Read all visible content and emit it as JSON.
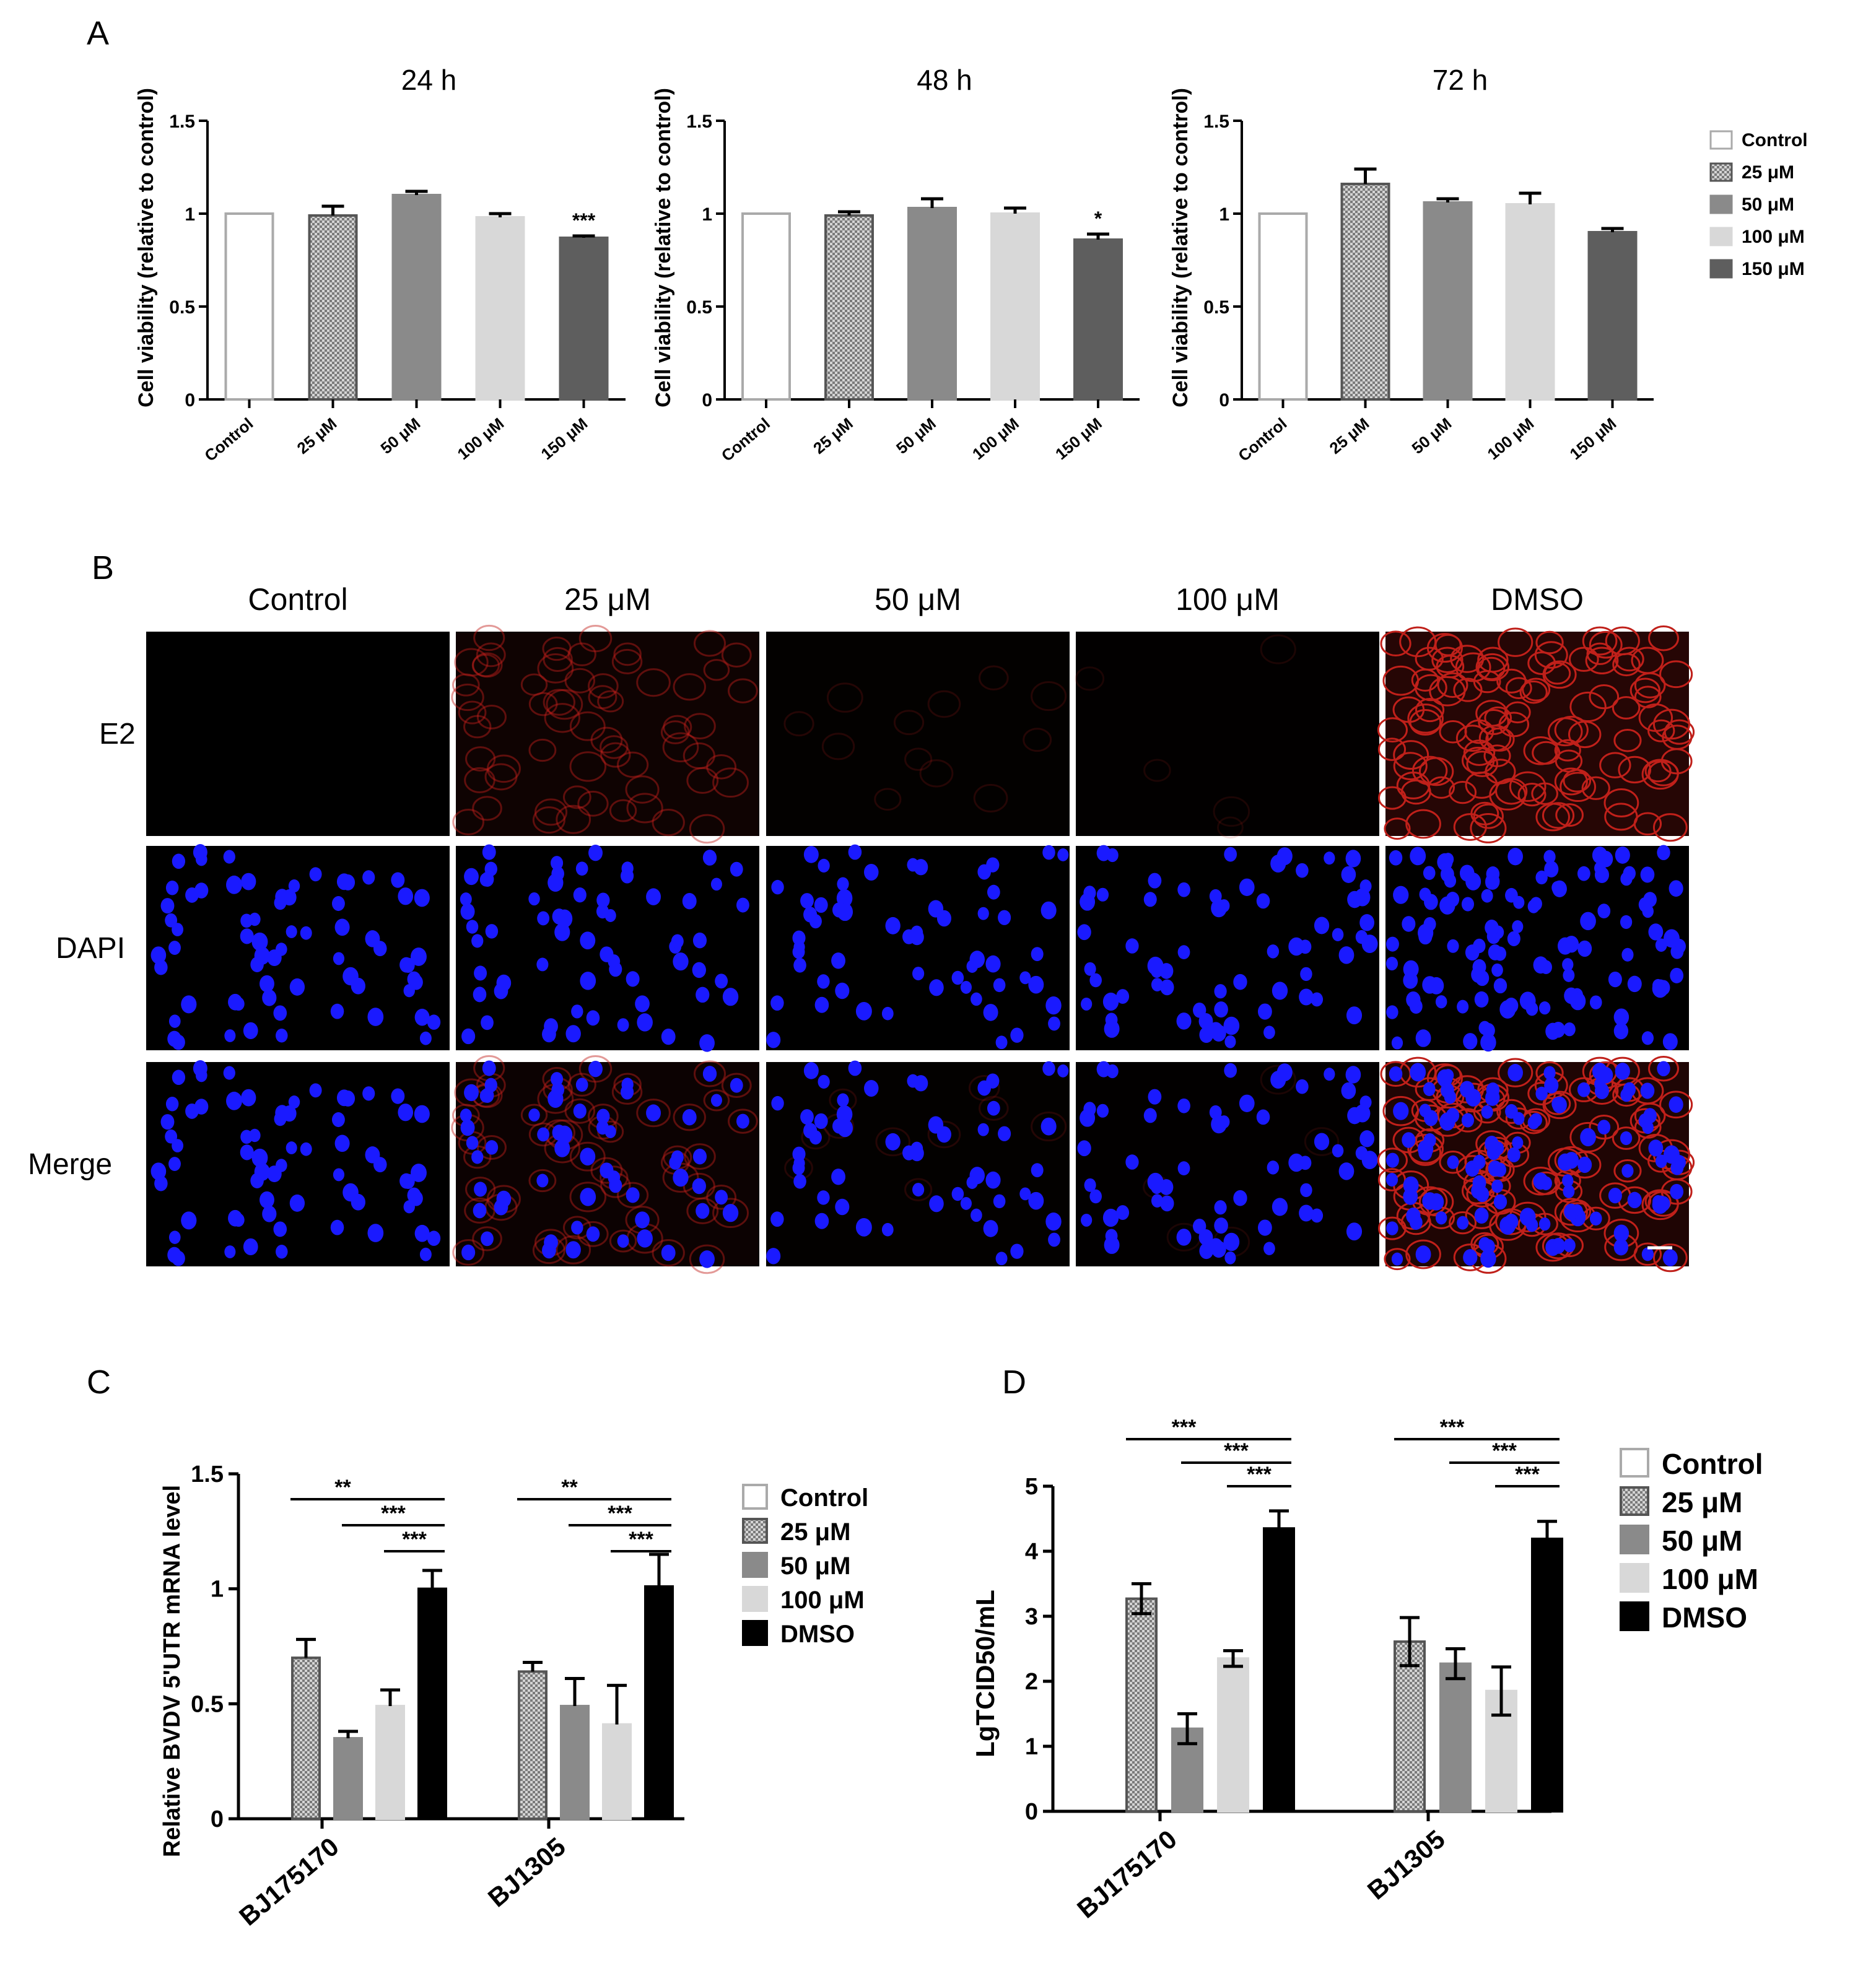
{
  "panels": {
    "A": "A",
    "B": "B",
    "C": "C",
    "D": "D"
  },
  "colors": {
    "control": "#ffffff",
    "c25": "#b8b8b8",
    "c50": "#8a8a8a",
    "c100": "#d8d8d8",
    "c150": "#5e5e5e",
    "dmso": "#000000",
    "dapi_blue": "#1a1aff",
    "e2_red": "#c0201a"
  },
  "icons": {
    "pattern_25": "checkered-fill",
    "scale_bar": "scale-bar"
  },
  "legend_a": [
    "Control",
    "25 μM",
    "50 μM",
    "100 μM",
    "150 μM"
  ],
  "legend_cd": [
    "Control",
    "25 μM",
    "50 μM",
    "100 μM",
    "DMSO"
  ],
  "panel_b": {
    "columns": [
      "Control",
      "25 μM",
      "50 μM",
      "100 μM",
      "DMSO"
    ],
    "rows": [
      "E2",
      "DAPI",
      "Merge"
    ],
    "red_intensity": [
      0.0,
      0.35,
      0.08,
      0.04,
      0.9
    ]
  },
  "chart_data": [
    {
      "type": "bar",
      "panel": "A",
      "title": "24 h",
      "ylabel": "Cell viability (relative to control)",
      "categories": [
        "Control",
        "25 μM",
        "50 μM",
        "100 μM",
        "150 μM"
      ],
      "values": [
        1.0,
        0.99,
        1.1,
        0.98,
        0.87
      ],
      "errors": [
        0.0,
        0.05,
        0.02,
        0.02,
        0.01
      ],
      "significance": [
        "",
        "",
        "",
        "",
        "***"
      ],
      "ylim": [
        0,
        1.5
      ],
      "yticks": [
        "0",
        "0.5",
        "1",
        "1.5"
      ]
    },
    {
      "type": "bar",
      "panel": "A",
      "title": "48 h",
      "ylabel": "Cell viability (relative to control)",
      "categories": [
        "Control",
        "25 μM",
        "50 μM",
        "100 μM",
        "150 μM"
      ],
      "values": [
        1.0,
        0.99,
        1.03,
        1.0,
        0.86
      ],
      "errors": [
        0.0,
        0.02,
        0.05,
        0.03,
        0.03
      ],
      "significance": [
        "",
        "",
        "",
        "",
        "*"
      ],
      "ylim": [
        0,
        1.5
      ],
      "yticks": [
        "0",
        "0.5",
        "1",
        "1.5"
      ]
    },
    {
      "type": "bar",
      "panel": "A",
      "title": "72 h",
      "ylabel": "Cell viability (relative to control)",
      "categories": [
        "Control",
        "25 μM",
        "50 μM",
        "100 μM",
        "150 μM"
      ],
      "values": [
        1.0,
        1.16,
        1.06,
        1.05,
        0.9
      ],
      "errors": [
        0.0,
        0.08,
        0.02,
        0.06,
        0.02
      ],
      "significance": [
        "",
        "",
        "",
        "",
        ""
      ],
      "ylim": [
        0,
        1.5
      ],
      "yticks": [
        "0",
        "0.5",
        "1",
        "1.5"
      ]
    },
    {
      "type": "bar",
      "panel": "C",
      "ylabel": "Relative BVDV 5'UTR mRNA level",
      "categories": [
        "BJ175170",
        "BJ1305"
      ],
      "series": [
        {
          "name": "Control",
          "values": [
            0,
            0
          ],
          "errors": [
            0,
            0
          ]
        },
        {
          "name": "25 μM",
          "values": [
            0.7,
            0.64
          ],
          "errors": [
            0.08,
            0.04
          ]
        },
        {
          "name": "50 μM",
          "values": [
            0.35,
            0.49
          ],
          "errors": [
            0.03,
            0.12
          ]
        },
        {
          "name": "100 μM",
          "values": [
            0.49,
            0.41
          ],
          "errors": [
            0.07,
            0.17
          ]
        },
        {
          "name": "DMSO",
          "values": [
            1.0,
            1.01
          ],
          "errors": [
            0.08,
            0.14
          ]
        }
      ],
      "significance": [
        {
          "group": "BJ175170",
          "from": "25 μM",
          "to": "DMSO",
          "label": "**"
        },
        {
          "group": "BJ175170",
          "from": "50 μM",
          "to": "DMSO",
          "label": "***"
        },
        {
          "group": "BJ175170",
          "from": "100 μM",
          "to": "DMSO",
          "label": "***"
        },
        {
          "group": "BJ1305",
          "from": "25 μM",
          "to": "DMSO",
          "label": "**"
        },
        {
          "group": "BJ1305",
          "from": "50 μM",
          "to": "DMSO",
          "label": "***"
        },
        {
          "group": "BJ1305",
          "from": "100 μM",
          "to": "DMSO",
          "label": "***"
        }
      ],
      "ylim": [
        0,
        1.5
      ],
      "yticks": [
        "0",
        "0.5",
        "1",
        "1.5"
      ]
    },
    {
      "type": "bar",
      "panel": "D",
      "ylabel": "LgTCID50/mL",
      "categories": [
        "BJ175170",
        "BJ1305"
      ],
      "series": [
        {
          "name": "Control",
          "values": [
            0,
            0
          ],
          "errors": [
            0,
            0
          ]
        },
        {
          "name": "25 μM",
          "values": [
            3.27,
            2.61
          ],
          "errors": [
            0.23,
            0.37
          ]
        },
        {
          "name": "50 μM",
          "values": [
            1.27,
            2.27
          ],
          "errors": [
            0.23,
            0.23
          ]
        },
        {
          "name": "100 μM",
          "values": [
            2.35,
            1.85
          ],
          "errors": [
            0.12,
            0.37
          ]
        },
        {
          "name": "DMSO",
          "values": [
            4.35,
            4.19
          ],
          "errors": [
            0.27,
            0.27
          ]
        }
      ],
      "significance": [
        {
          "group": "BJ175170",
          "from": "25 μM",
          "to": "DMSO",
          "label": "***"
        },
        {
          "group": "BJ175170",
          "from": "50 μM",
          "to": "DMSO",
          "label": "***"
        },
        {
          "group": "BJ175170",
          "from": "100 μM",
          "to": "DMSO",
          "label": "***"
        },
        {
          "group": "BJ1305",
          "from": "25 μM",
          "to": "DMSO",
          "label": "***"
        },
        {
          "group": "BJ1305",
          "from": "50 μM",
          "to": "DMSO",
          "label": "***"
        },
        {
          "group": "BJ1305",
          "from": "100 μM",
          "to": "DMSO",
          "label": "***"
        }
      ],
      "ylim": [
        0,
        5
      ],
      "yticks": [
        "0",
        "1",
        "2",
        "3",
        "4",
        "5"
      ]
    }
  ]
}
